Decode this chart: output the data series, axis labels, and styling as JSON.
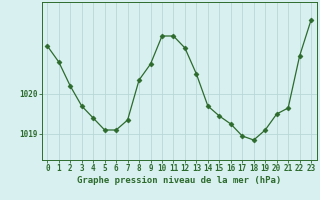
{
  "x": [
    0,
    1,
    2,
    3,
    4,
    5,
    6,
    7,
    8,
    9,
    10,
    11,
    12,
    13,
    14,
    15,
    16,
    17,
    18,
    19,
    20,
    21,
    22,
    23
  ],
  "y": [
    1021.2,
    1020.8,
    1020.2,
    1019.7,
    1019.4,
    1019.1,
    1019.1,
    1019.35,
    1020.35,
    1020.75,
    1021.45,
    1021.45,
    1021.15,
    1020.5,
    1019.7,
    1019.45,
    1019.25,
    1018.95,
    1018.85,
    1019.1,
    1019.5,
    1019.65,
    1020.95,
    1021.85
  ],
  "line_color": "#2d6b2d",
  "marker": "D",
  "marker_size": 2.5,
  "bg_color": "#d8f0f0",
  "grid_color": "#b8d8d8",
  "ytick_labels": [
    "1019",
    "1020"
  ],
  "ytick_vals": [
    1019,
    1020
  ],
  "xlabel": "Graphe pression niveau de la mer (hPa)",
  "ylim_min": 1018.35,
  "ylim_max": 1022.3,
  "xlim_min": -0.5,
  "xlim_max": 23.5,
  "tick_fontsize": 5.5,
  "label_fontsize": 6.5
}
